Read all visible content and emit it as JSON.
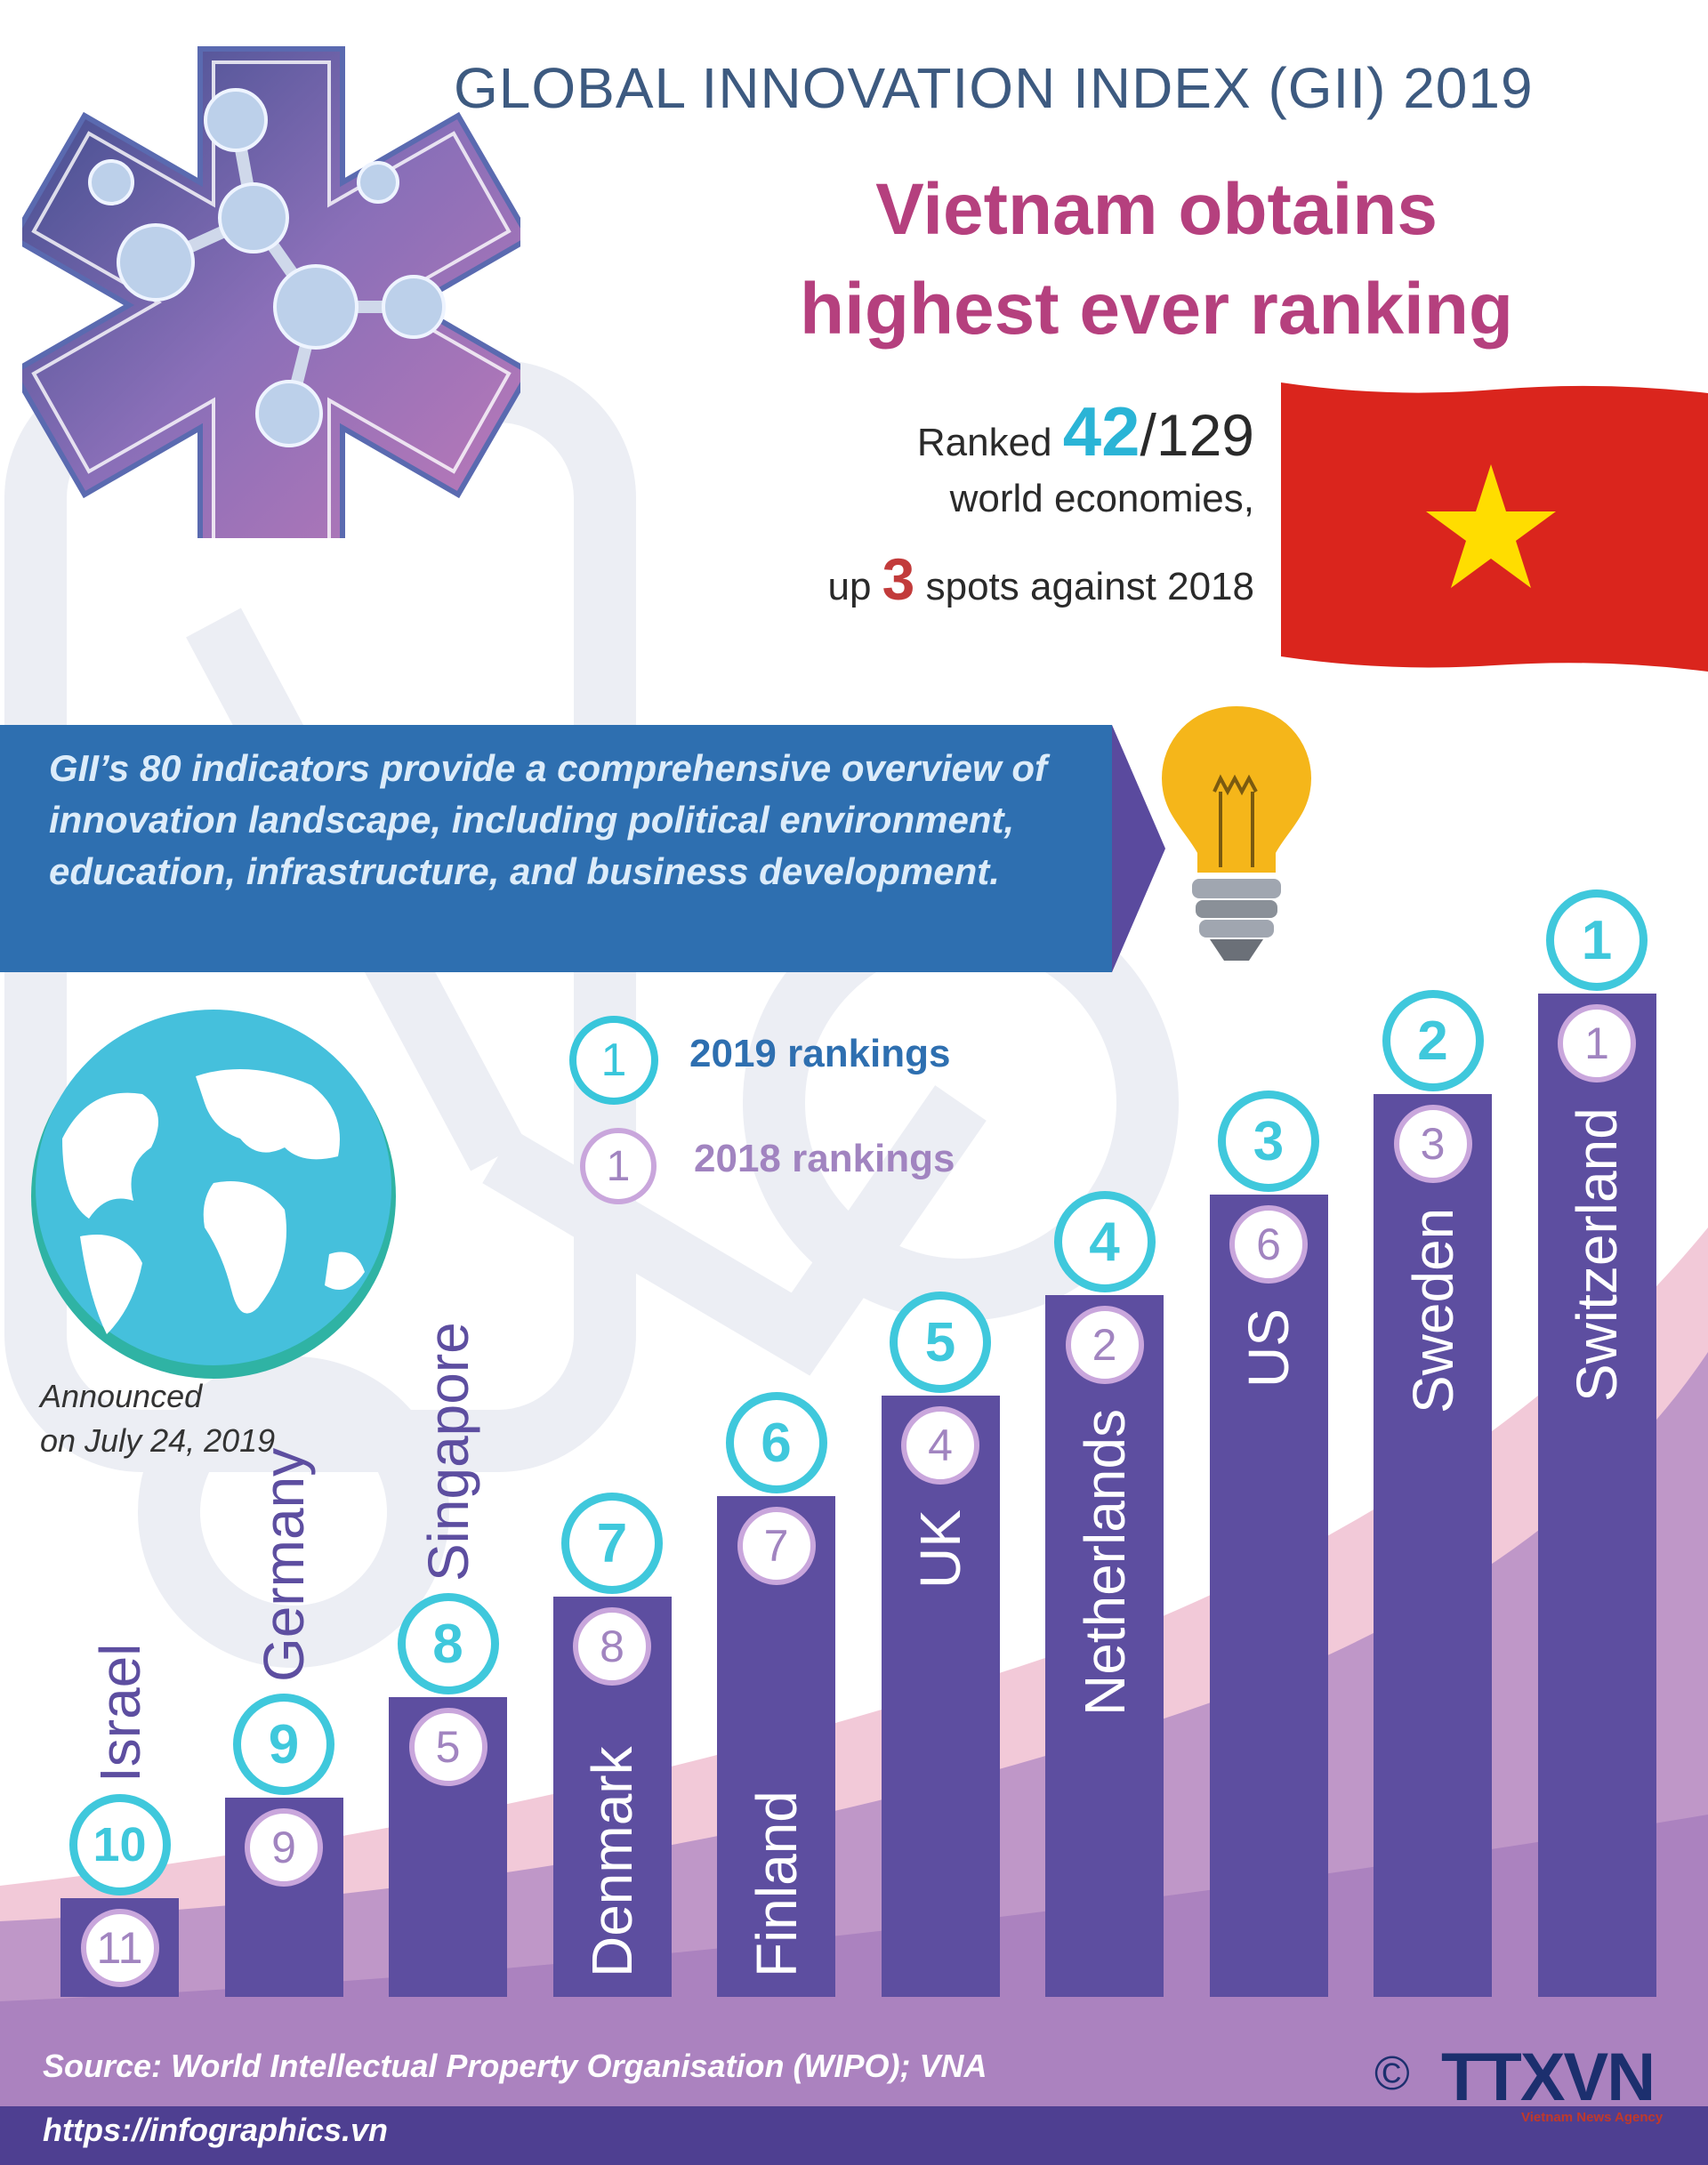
{
  "header": {
    "gii_title": "GLOBAL INNOVATION INDEX (GII) 2019",
    "headline_line1": "Vietnam obtains",
    "headline_line2": "highest ever ranking"
  },
  "vietnam": {
    "ranked_word": "Ranked",
    "rank": "42",
    "total": "/129",
    "line2": "world economies,",
    "up_word": "up",
    "spots_up": "3",
    "spots_text": "spots against 2018"
  },
  "info_banner": {
    "text": "GII’s 80 indicators provide a comprehensive overview of innovation landscape, including political environment, education, infrastructure, and business development."
  },
  "legend": {
    "sample_number": "1",
    "label_2019": "2019 rankings",
    "label_2018": "2018 rankings"
  },
  "announced": {
    "line1": "Announced",
    "line2": "on July 24, 2019"
  },
  "chart_data": {
    "type": "bar",
    "categories": [
      "Israel",
      "Germany",
      "Singapore",
      "Denmark",
      "Finland",
      "UK",
      "Netherlands",
      "US",
      "Sweden",
      "Switzerland"
    ],
    "series": [
      {
        "name": "2019 rankings",
        "values": [
          10,
          9,
          8,
          7,
          6,
          5,
          4,
          3,
          2,
          1
        ]
      },
      {
        "name": "2018 rankings",
        "values": [
          11,
          9,
          5,
          8,
          7,
          4,
          2,
          6,
          3,
          1
        ]
      }
    ]
  },
  "footer": {
    "source": "Source: World Intellectual Property Organisation (WIPO); VNA",
    "url": "https://infographics.vn",
    "copyright_symbol": "©",
    "logo_text": "TTXVN",
    "logo_sub": "Vietnam News Agency"
  },
  "colors": {
    "bar": "#5d4ea0",
    "ring_2019": "#3fc8dc",
    "ring_2018": "#c9a6dc",
    "headline": "#b5407e",
    "flag_red": "#da251d",
    "flag_star": "#ffdd00",
    "banner": "#2e6fb0"
  }
}
